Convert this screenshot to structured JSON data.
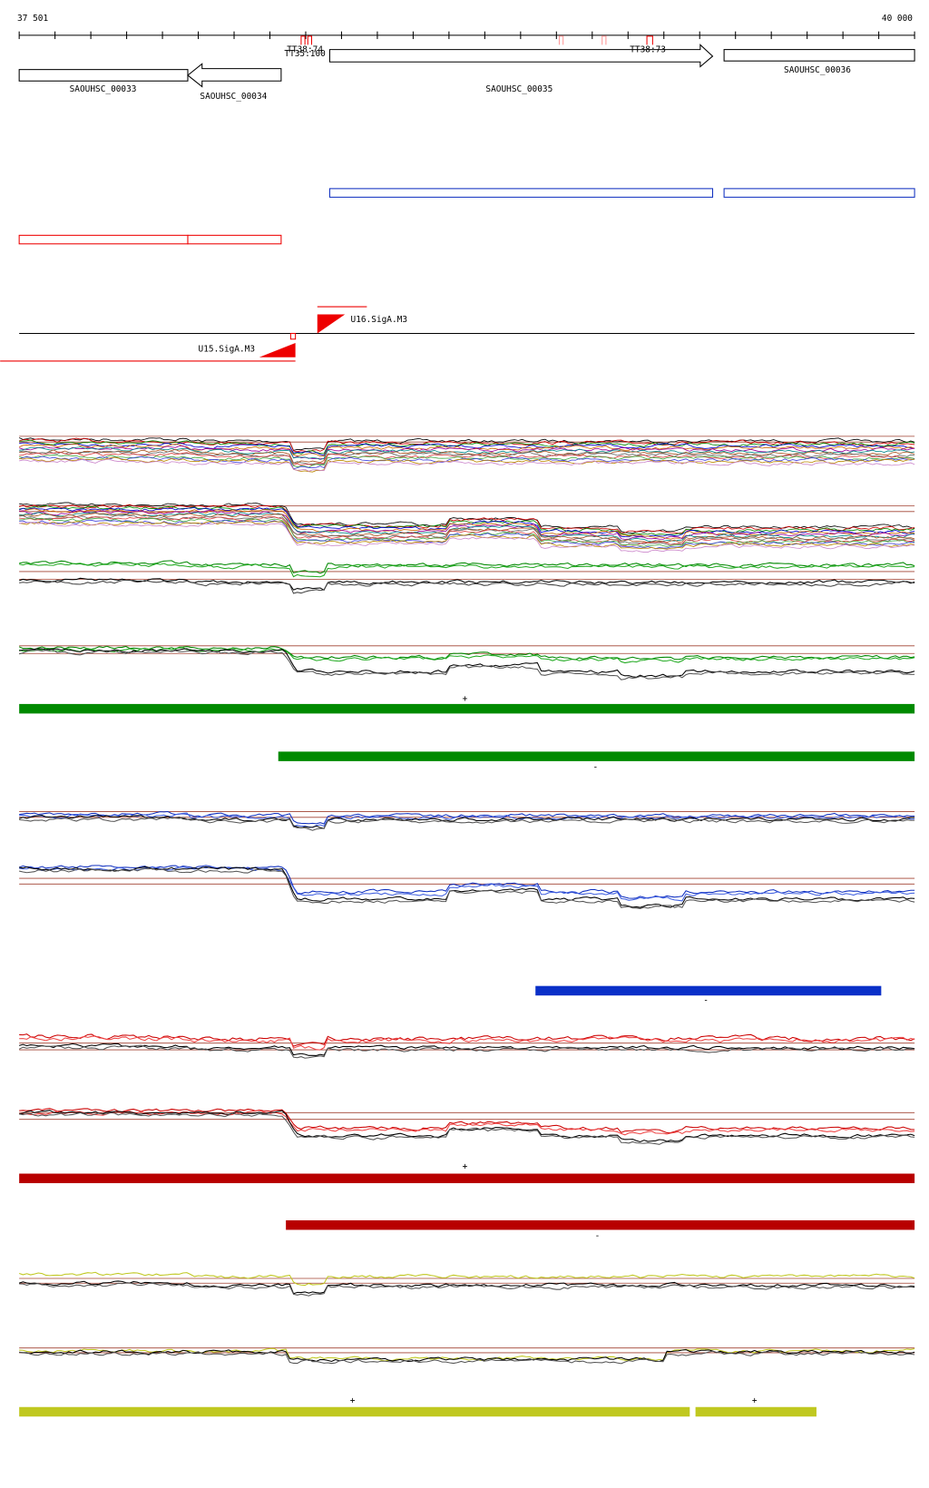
{
  "ruler": {
    "start": "37 501",
    "end": "40 000"
  },
  "genes": [
    {
      "label": "SAOUHSC_00033"
    },
    {
      "label": "SAOUHSC_00034"
    },
    {
      "label": "SAOUHSC_00035"
    },
    {
      "label": "SAOUHSC_00036"
    }
  ],
  "terminators": [
    {
      "label": "TT38:74"
    },
    {
      "label": "TT35:100"
    },
    {
      "label": "TT38:73"
    }
  ],
  "promoters": [
    {
      "label": "U16.SigA.M3"
    },
    {
      "label": "U15.SigA.M3"
    }
  ],
  "strand_labels": [
    "+",
    "-",
    "-",
    "+",
    "-",
    "+",
    "+"
  ]
}
